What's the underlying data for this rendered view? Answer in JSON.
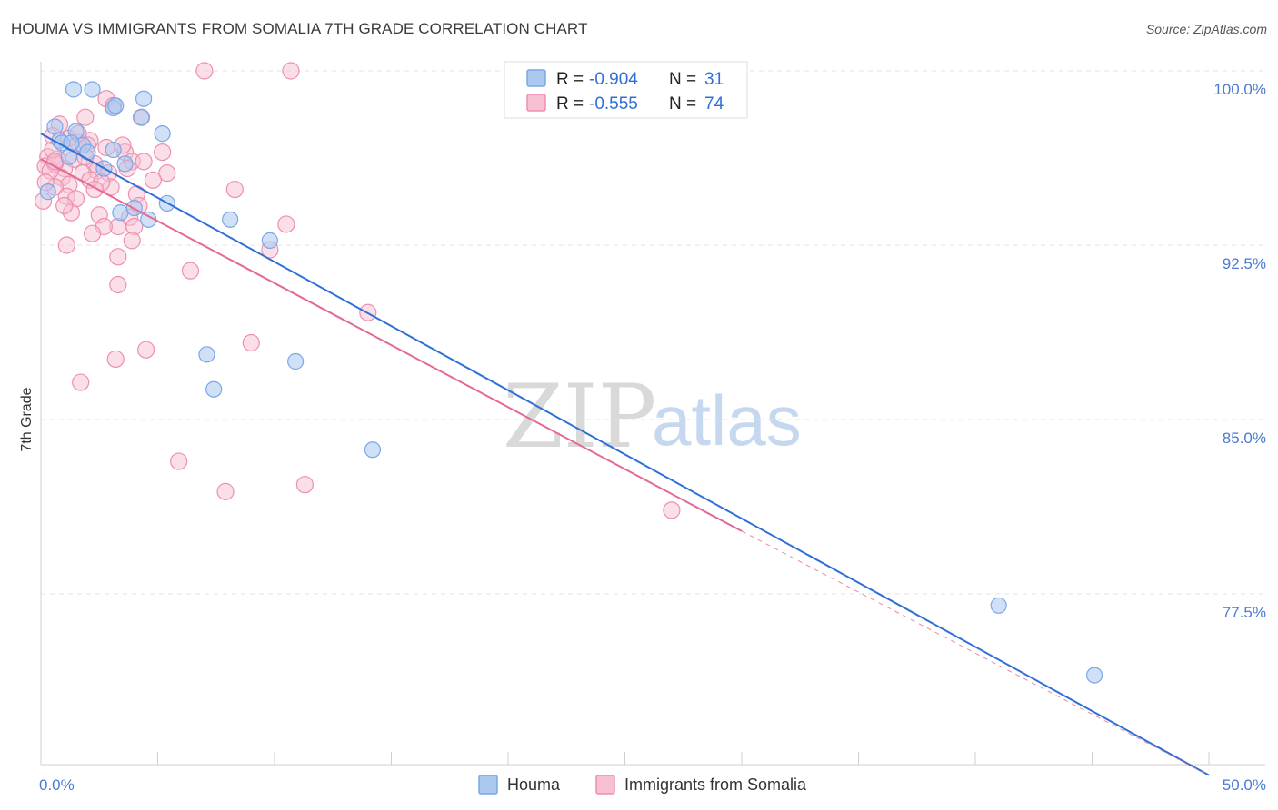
{
  "header": {
    "title": "HOUMA VS IMMIGRANTS FROM SOMALIA 7TH GRADE CORRELATION CHART",
    "source": "Source: ZipAtlas.com"
  },
  "watermark": {
    "zip": "ZIP",
    "atlas": "atlas"
  },
  "colors": {
    "houma": "#7aa7e8",
    "houma_fill": "#aac8f0",
    "houma_line": "#2f6fd6",
    "somalia": "#ee8fb0",
    "somalia_fill": "#f6bfd2",
    "somalia_line": "#e46a94",
    "grid": "#e3e3e3",
    "axis_text": "#4a7bd0"
  },
  "legend": {
    "rows": [
      {
        "r_label": "R =",
        "r_value": "-0.904",
        "n_label": "N =",
        "n_value": "31"
      },
      {
        "r_label": "R =",
        "r_value": "-0.555",
        "n_label": "N =",
        "n_value": "74"
      }
    ]
  },
  "chart_data": {
    "type": "scatter",
    "title": "HOUMA VS IMMIGRANTS FROM SOMALIA 7TH GRADE CORRELATION CHART",
    "xlabel": "",
    "ylabel": "7th Grade",
    "xlim": [
      0,
      50
    ],
    "ylim": [
      70.0,
      101.0
    ],
    "x_tick_labels": [
      {
        "value": 0,
        "label": "0.0%"
      },
      {
        "value": 50,
        "label": "50.0%"
      }
    ],
    "y_tick_labels": [
      {
        "value": 100.0,
        "label": "100.0%"
      },
      {
        "value": 92.5,
        "label": "92.5%"
      },
      {
        "value": 85.0,
        "label": "85.0%"
      },
      {
        "value": 77.5,
        "label": "77.5%"
      }
    ],
    "grid": true,
    "legend_position": "top-center",
    "series": [
      {
        "name": "Houma",
        "r": -0.904,
        "n": 31,
        "trend": {
          "x": [
            0,
            50
          ],
          "y": [
            97.3,
            69.7
          ]
        },
        "points": [
          [
            1.4,
            99.2
          ],
          [
            2.2,
            99.2
          ],
          [
            4.4,
            98.8
          ],
          [
            3.1,
            98.4
          ],
          [
            3.2,
            98.5
          ],
          [
            4.3,
            98.0
          ],
          [
            0.6,
            97.6
          ],
          [
            1.5,
            97.4
          ],
          [
            5.2,
            97.3
          ],
          [
            0.8,
            97.0
          ],
          [
            0.9,
            96.9
          ],
          [
            1.8,
            96.8
          ],
          [
            3.1,
            96.6
          ],
          [
            2.0,
            96.5
          ],
          [
            3.6,
            96.0
          ],
          [
            1.2,
            96.3
          ],
          [
            2.7,
            95.8
          ],
          [
            0.3,
            94.8
          ],
          [
            5.4,
            94.3
          ],
          [
            3.4,
            93.9
          ],
          [
            4.6,
            93.6
          ],
          [
            8.1,
            93.6
          ],
          [
            9.8,
            92.7
          ],
          [
            7.1,
            87.8
          ],
          [
            7.4,
            86.3
          ],
          [
            10.9,
            87.5
          ],
          [
            14.2,
            83.7
          ],
          [
            41.0,
            77.0
          ],
          [
            45.1,
            74.0
          ],
          [
            1.3,
            96.9
          ],
          [
            4.0,
            94.1
          ]
        ]
      },
      {
        "name": "Immigrants from Somalia",
        "r": -0.555,
        "n": 74,
        "trend_solid": {
          "x": [
            0,
            30
          ],
          "y": [
            96.2,
            80.2
          ]
        },
        "trend_dashed": {
          "x": [
            30,
            50
          ],
          "y": [
            80.2,
            69.7
          ]
        },
        "points": [
          [
            7.0,
            100.0
          ],
          [
            10.7,
            100.0
          ],
          [
            2.8,
            98.8
          ],
          [
            3.1,
            98.5
          ],
          [
            1.9,
            98.0
          ],
          [
            4.3,
            98.0
          ],
          [
            0.8,
            97.7
          ],
          [
            0.5,
            97.2
          ],
          [
            1.2,
            97.1
          ],
          [
            2.1,
            97.0
          ],
          [
            1.6,
            96.9
          ],
          [
            2.0,
            96.8
          ],
          [
            2.8,
            96.7
          ],
          [
            3.6,
            96.5
          ],
          [
            5.2,
            96.5
          ],
          [
            0.3,
            96.3
          ],
          [
            0.7,
            96.2
          ],
          [
            1.4,
            96.2
          ],
          [
            3.9,
            96.1
          ],
          [
            2.3,
            96.0
          ],
          [
            0.2,
            95.9
          ],
          [
            1.0,
            95.8
          ],
          [
            3.7,
            95.8
          ],
          [
            2.4,
            95.7
          ],
          [
            1.8,
            95.6
          ],
          [
            2.9,
            95.6
          ],
          [
            5.4,
            95.6
          ],
          [
            0.9,
            95.4
          ],
          [
            2.1,
            95.3
          ],
          [
            4.8,
            95.3
          ],
          [
            1.2,
            95.1
          ],
          [
            0.6,
            95.0
          ],
          [
            3.0,
            95.0
          ],
          [
            8.3,
            94.9
          ],
          [
            4.1,
            94.7
          ],
          [
            1.1,
            94.6
          ],
          [
            1.5,
            94.5
          ],
          [
            0.1,
            94.4
          ],
          [
            4.2,
            94.2
          ],
          [
            1.3,
            93.9
          ],
          [
            2.5,
            93.8
          ],
          [
            3.8,
            93.7
          ],
          [
            10.5,
            93.4
          ],
          [
            3.3,
            93.3
          ],
          [
            2.7,
            93.3
          ],
          [
            4.0,
            93.3
          ],
          [
            2.2,
            93.0
          ],
          [
            3.9,
            92.7
          ],
          [
            1.1,
            92.5
          ],
          [
            9.8,
            92.3
          ],
          [
            3.3,
            92.0
          ],
          [
            6.4,
            91.4
          ],
          [
            3.3,
            90.8
          ],
          [
            14.0,
            89.6
          ],
          [
            9.0,
            88.3
          ],
          [
            4.5,
            88.0
          ],
          [
            3.2,
            87.6
          ],
          [
            1.7,
            86.6
          ],
          [
            5.9,
            83.2
          ],
          [
            7.9,
            81.9
          ],
          [
            11.3,
            82.2
          ],
          [
            27.0,
            81.1
          ],
          [
            0.6,
            96.0
          ],
          [
            1.9,
            96.3
          ],
          [
            2.6,
            95.2
          ],
          [
            3.5,
            96.8
          ],
          [
            0.4,
            95.7
          ],
          [
            1.6,
            97.3
          ],
          [
            2.3,
            94.9
          ],
          [
            0.5,
            96.6
          ],
          [
            1.0,
            94.2
          ],
          [
            4.4,
            96.1
          ],
          [
            0.2,
            95.2
          ],
          [
            0.6,
            96.1
          ]
        ]
      }
    ]
  },
  "bottom_legend": {
    "items": [
      {
        "label": "Houma"
      },
      {
        "label": "Immigrants from Somalia"
      }
    ]
  }
}
